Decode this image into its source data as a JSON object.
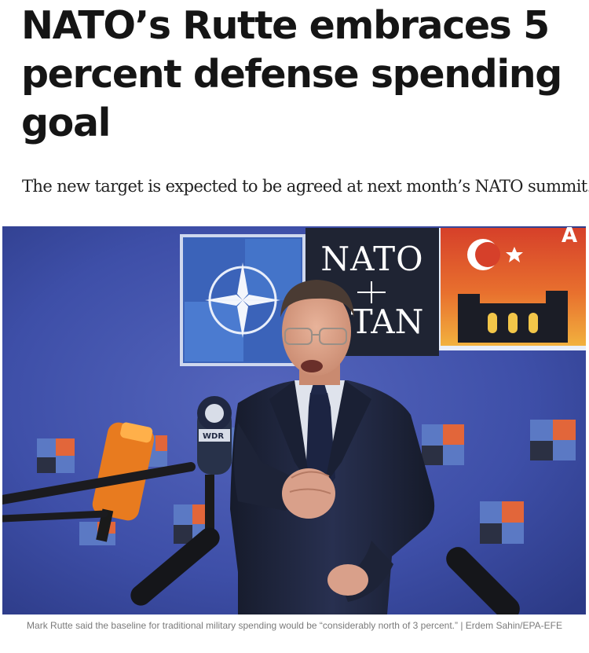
{
  "article": {
    "headline": "NATO’s Rutte embraces 5 percent defense spending goal",
    "dek": "The new target is expected to be agreed at next month’s NATO summit.",
    "photo": {
      "backdrop_text_top": "NATO",
      "backdrop_text_bottom": "TAN",
      "backdrop_text_corner": "A",
      "mic_logo_text": "WDR",
      "colors": {
        "backdrop_blue": "#3e4fa8",
        "logo_panel_blue": "#3b63b9",
        "nato_dark_panel": "#1f2433",
        "turkey_red": "#d6402a",
        "sunset_orange": "#f0a23a",
        "suit_navy": "#1c2235",
        "mic_orange": "#e87b1f"
      }
    },
    "caption": "Mark Rutte said the baseline for traditional military spending would be “considerably north of 3 percent.” | Erdem Sahin/EPA-EFE"
  }
}
